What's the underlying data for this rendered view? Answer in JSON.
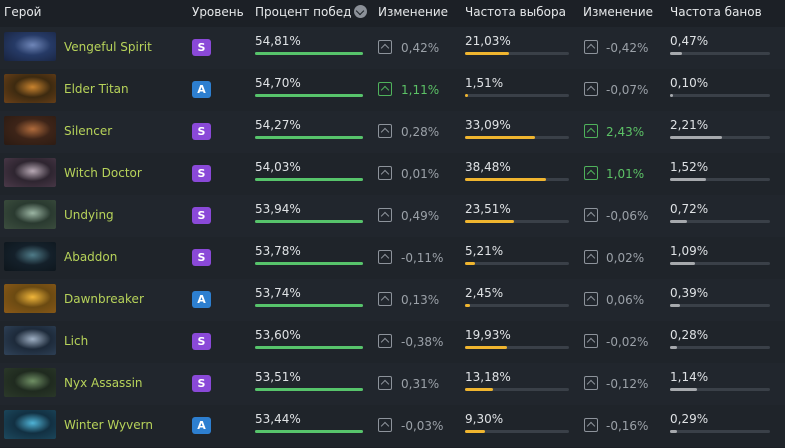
{
  "headers": {
    "hero": "Герой",
    "tier": "Уровень",
    "winrate": "Процент побед",
    "change1": "Изменение",
    "pickrate": "Частота выбора",
    "change2": "Изменение",
    "banrate": "Частота банов"
  },
  "colors": {
    "winrate_bar": "#57c46b",
    "pickrate_bar": "#f0b52f",
    "banrate_bar": "#a6a9ad",
    "tier_S": "#8a49d8",
    "tier_A": "#2d7fd0",
    "up": "#5cc266"
  },
  "rows": [
    {
      "hero": "Vengeful Spirit",
      "tier": "S",
      "winrate": "54,81%",
      "winrate_fill": 1.0,
      "change1": "0,42%",
      "change1_up": false,
      "pickrate": "21,03%",
      "pickrate_fill": 0.42,
      "change2": "-0,42%",
      "change2_up": false,
      "banrate": "0,47%",
      "banrate_fill": 0.12,
      "portrait": [
        "#263a66",
        "#6f86b8",
        "#18233f"
      ]
    },
    {
      "hero": "Elder Titan",
      "tier": "A",
      "winrate": "54,70%",
      "winrate_fill": 1.0,
      "change1": "1,11%",
      "change1_up": true,
      "pickrate": "1,51%",
      "pickrate_fill": 0.03,
      "change2": "-0,07%",
      "change2_up": false,
      "banrate": "0,10%",
      "banrate_fill": 0.03,
      "portrait": [
        "#3d2a10",
        "#c9832e",
        "#6d4219"
      ]
    },
    {
      "hero": "Silencer",
      "tier": "S",
      "winrate": "54,27%",
      "winrate_fill": 1.0,
      "change1": "0,28%",
      "change1_up": false,
      "pickrate": "33,09%",
      "pickrate_fill": 0.67,
      "change2": "2,43%",
      "change2_up": true,
      "banrate": "2,21%",
      "banrate_fill": 0.52,
      "portrait": [
        "#3d2418",
        "#b06b3c",
        "#2a1a12"
      ]
    },
    {
      "hero": "Witch Doctor",
      "tier": "S",
      "winrate": "54,03%",
      "winrate_fill": 1.0,
      "change1": "0,01%",
      "change1_up": false,
      "pickrate": "38,48%",
      "pickrate_fill": 0.78,
      "change2": "1,01%",
      "change2_up": true,
      "banrate": "1,52%",
      "banrate_fill": 0.36,
      "portrait": [
        "#2e2530",
        "#b7a8b4",
        "#4c3a4a"
      ]
    },
    {
      "hero": "Undying",
      "tier": "S",
      "winrate": "53,94%",
      "winrate_fill": 1.0,
      "change1": "0,49%",
      "change1_up": false,
      "pickrate": "23,51%",
      "pickrate_fill": 0.47,
      "change2": "-0,06%",
      "change2_up": false,
      "banrate": "0,72%",
      "banrate_fill": 0.17,
      "portrait": [
        "#2a3a30",
        "#9bb5a3",
        "#3d4f3f"
      ]
    },
    {
      "hero": "Abaddon",
      "tier": "S",
      "winrate": "53,78%",
      "winrate_fill": 1.0,
      "change1": "-0,11%",
      "change1_up": false,
      "pickrate": "5,21%",
      "pickrate_fill": 0.1,
      "change2": "0,02%",
      "change2_up": false,
      "banrate": "1,09%",
      "banrate_fill": 0.25,
      "portrait": [
        "#14202a",
        "#4f7b88",
        "#0d151b"
      ]
    },
    {
      "hero": "Dawnbreaker",
      "tier": "A",
      "winrate": "53,74%",
      "winrate_fill": 1.0,
      "change1": "0,13%",
      "change1_up": false,
      "pickrate": "2,45%",
      "pickrate_fill": 0.05,
      "change2": "0,06%",
      "change2_up": false,
      "banrate": "0,39%",
      "banrate_fill": 0.1,
      "portrait": [
        "#6b4a12",
        "#f0b63a",
        "#8c5a18"
      ]
    },
    {
      "hero": "Lich",
      "tier": "S",
      "winrate": "53,60%",
      "winrate_fill": 1.0,
      "change1": "-0,38%",
      "change1_up": false,
      "pickrate": "19,93%",
      "pickrate_fill": 0.4,
      "change2": "-0,02%",
      "change2_up": false,
      "banrate": "0,28%",
      "banrate_fill": 0.07,
      "portrait": [
        "#1d2a3a",
        "#9fb0c4",
        "#31445a"
      ]
    },
    {
      "hero": "Nyx Assassin",
      "tier": "S",
      "winrate": "53,51%",
      "winrate_fill": 1.0,
      "change1": "0,31%",
      "change1_up": false,
      "pickrate": "13,18%",
      "pickrate_fill": 0.27,
      "change2": "-0,12%",
      "change2_up": false,
      "banrate": "1,14%",
      "banrate_fill": 0.27,
      "portrait": [
        "#1f2a1f",
        "#6f8f64",
        "#2c3a2a"
      ]
    },
    {
      "hero": "Winter Wyvern",
      "tier": "A",
      "winrate": "53,44%",
      "winrate_fill": 1.0,
      "change1": "-0,03%",
      "change1_up": false,
      "pickrate": "9,30%",
      "pickrate_fill": 0.19,
      "change2": "-0,16%",
      "change2_up": false,
      "banrate": "0,29%",
      "banrate_fill": 0.07,
      "portrait": [
        "#123042",
        "#4fb3d6",
        "#1d4a5f"
      ]
    }
  ]
}
